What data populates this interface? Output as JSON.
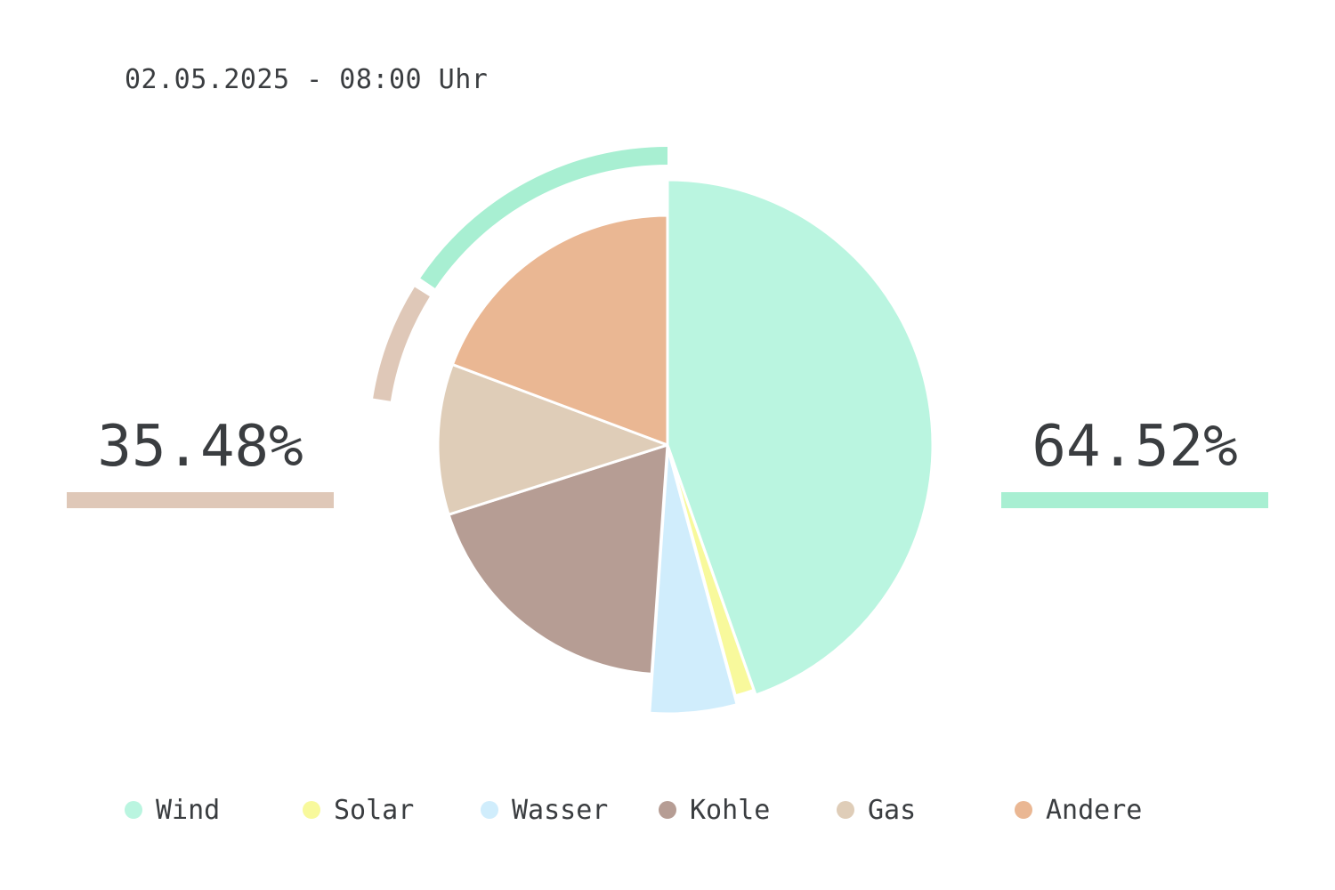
{
  "header": {
    "timestamp": "02.05.2025 - 08:00 Uhr"
  },
  "summary": {
    "left_percent": "35.48%",
    "right_percent": "64.52%",
    "left_color": "#dfc8b8",
    "right_color": "#a8efd2"
  },
  "chart_data": {
    "type": "pie",
    "categories": [
      "Wind",
      "Solar",
      "Wasser",
      "Kohle",
      "Gas",
      "Andere"
    ],
    "values": [
      44.6,
      1.2,
      5.3,
      19.0,
      10.6,
      19.3
    ],
    "colors": [
      "#baf5e0",
      "#f8f99c",
      "#d0edfc",
      "#b69d94",
      "#dfcdb8",
      "#eab793"
    ],
    "start_angle_deg": 0,
    "direction": "clockwise",
    "exploded": [
      "Solar",
      "Wasser"
    ],
    "outer_ring": [
      {
        "group": "right",
        "color": "#a8efd2",
        "percent": 64.52
      },
      {
        "group": "left",
        "color": "#dfc8b8",
        "percent": 35.48
      }
    ],
    "legend_position": "bottom"
  },
  "legend": {
    "items": [
      {
        "label": "Wind",
        "color": "#baf5e0"
      },
      {
        "label": "Solar",
        "color": "#f8f99c"
      },
      {
        "label": "Wasser",
        "color": "#d0edfc"
      },
      {
        "label": "Kohle",
        "color": "#b69d94"
      },
      {
        "label": "Gas",
        "color": "#dfcdb8"
      },
      {
        "label": "Andere",
        "color": "#eab793"
      }
    ]
  }
}
